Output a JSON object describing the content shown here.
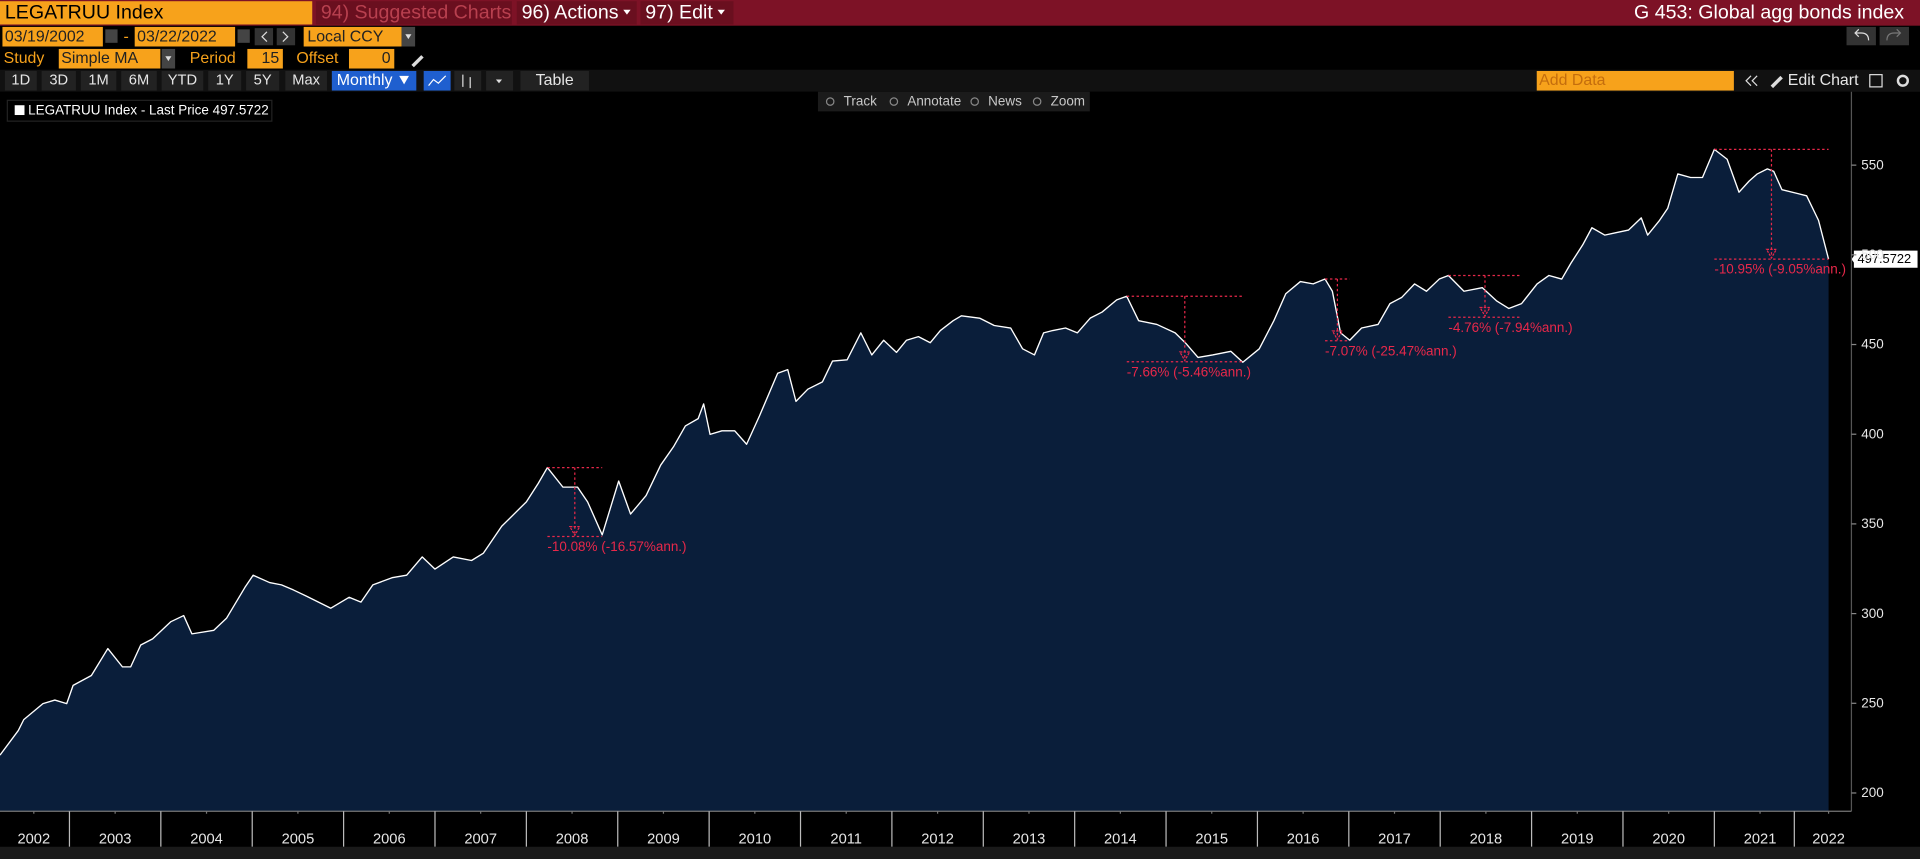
{
  "ui": {
    "security": "LEGATRUU Index",
    "menu": [
      "94) Suggested Charts",
      "96) Actions",
      "97) Edit"
    ],
    "description": "G 453: Global agg bonds index",
    "start_date": "03/19/2002",
    "date_sep": "-",
    "end_date": "03/22/2022",
    "currency": "Local CCY",
    "study_label": "Study",
    "study": "Simple MA",
    "period_label": "Period",
    "period": 15,
    "offset_label": "Offset",
    "offset": 0,
    "ranges": [
      "1D",
      "3D",
      "1M",
      "6M",
      "YTD",
      "1Y",
      "5Y",
      "Max"
    ],
    "frequency": "Monthly",
    "table": "Table",
    "add_data": "Add Data",
    "edit_chart": "Edit Chart",
    "tools": [
      "Track",
      "Annotate",
      "News",
      "Zoom"
    ]
  },
  "chart_data": {
    "type": "line",
    "x": [
      2002.24,
      2002.44,
      2002.5,
      2002.71,
      2002.84,
      2002.97,
      2003.04,
      2003.24,
      2003.42,
      2003.58,
      2003.67,
      2003.78,
      2003.91,
      2004.11,
      2004.25,
      2004.34,
      2004.58,
      2004.72,
      2004.92,
      2005.01,
      2005.19,
      2005.32,
      2005.45,
      2005.59,
      2005.86,
      2006.06,
      2006.19,
      2006.32,
      2006.53,
      2006.69,
      2006.86,
      2007.0,
      2007.2,
      2007.4,
      2007.53,
      2007.73,
      2008.0,
      2008.13,
      2008.23,
      2008.4,
      2008.56,
      2008.67,
      2008.83,
      2009.01,
      2009.14,
      2009.31,
      2009.47,
      2009.61,
      2009.74,
      2009.88,
      2009.94,
      2010.01,
      2010.14,
      2010.28,
      2010.41,
      2010.55,
      2010.75,
      2010.86,
      2010.95,
      2011.08,
      2011.24,
      2011.35,
      2011.51,
      2011.66,
      2011.78,
      2011.91,
      2012.05,
      2012.16,
      2012.29,
      2012.42,
      2012.53,
      2012.67,
      2012.76,
      2012.96,
      2013.12,
      2013.3,
      2013.43,
      2013.56,
      2013.66,
      2013.76,
      2013.9,
      2014.03,
      2014.17,
      2014.3,
      2014.46,
      2014.57,
      2014.7,
      2014.9,
      2015.1,
      2015.21,
      2015.35,
      2015.51,
      2015.71,
      2015.84,
      2016.02,
      2016.18,
      2016.31,
      2016.47,
      2016.61,
      2016.74,
      2016.82,
      2016.91,
      2017.01,
      2017.14,
      2017.32,
      2017.45,
      2017.58,
      2017.72,
      2017.85,
      2017.99,
      2018.09,
      2018.26,
      2018.46,
      2018.62,
      2018.75,
      2018.89,
      2019.06,
      2019.19,
      2019.33,
      2019.43,
      2019.56,
      2019.66,
      2019.8,
      2019.93,
      2020.06,
      2020.2,
      2020.27,
      2020.4,
      2020.49,
      2020.6,
      2020.74,
      2020.87,
      2021.0,
      2021.14,
      2021.27,
      2021.38,
      2021.47,
      2021.58,
      2021.65,
      2021.74,
      2021.91,
      2022.01,
      2022.14,
      2022.25
    ],
    "series": [
      {
        "name": "LEGATRUU Index - Last Price 497.5722",
        "color": "#ffffff",
        "fill": "#0a1e3a",
        "values": [
          221.1,
          234.8,
          240.9,
          249.8,
          251.8,
          249.8,
          260.0,
          265.5,
          280.5,
          270.3,
          270.3,
          282.5,
          285.9,
          295.5,
          298.9,
          288.7,
          290.7,
          297.5,
          314.6,
          321.4,
          317.3,
          316.0,
          313.2,
          309.8,
          303.0,
          309.1,
          306.4,
          316.0,
          320.0,
          321.4,
          331.6,
          324.8,
          331.6,
          329.6,
          333.7,
          348.7,
          362.3,
          372.6,
          381.4,
          370.5,
          370.5,
          362.3,
          343.9,
          373.9,
          355.5,
          365.8,
          382.8,
          393.0,
          404.6,
          408.7,
          416.9,
          399.9,
          401.9,
          401.9,
          394.4,
          410.1,
          434.0,
          436.0,
          418.3,
          425.1,
          429.2,
          440.8,
          441.5,
          456.5,
          444.2,
          452.4,
          445.6,
          452.4,
          454.4,
          451.0,
          457.8,
          463.3,
          466.0,
          464.7,
          460.6,
          459.2,
          447.6,
          444.2,
          456.5,
          457.8,
          459.2,
          456.5,
          464.7,
          468.1,
          474.9,
          476.9,
          463.3,
          461.2,
          456.5,
          451.0,
          442.8,
          444.2,
          446.2,
          440.1,
          447.6,
          463.3,
          478.3,
          485.1,
          483.8,
          486.5,
          479.7,
          456.5,
          452.4,
          459.2,
          461.2,
          472.8,
          476.3,
          483.8,
          479.7,
          486.5,
          488.5,
          479.7,
          481.7,
          474.2,
          470.1,
          472.8,
          483.8,
          488.5,
          486.5,
          495.3,
          505.6,
          515.1,
          511.0,
          512.4,
          513.8,
          520.6,
          511.0,
          519.2,
          526.0,
          545.1,
          543.1,
          543.1,
          558.8,
          553.3,
          534.9,
          541.1,
          545.1,
          547.9,
          546.5,
          536.3,
          534.2,
          532.9,
          519.2,
          497.5722
        ]
      }
    ],
    "xlim": [
      2002.24,
      2022.5
    ],
    "ylim": [
      189.8,
      590.9
    ],
    "xticks": [
      {
        "value": 2002.61,
        "label": "2002"
      },
      {
        "value": 2003.5,
        "label": "2003"
      },
      {
        "value": 2004.5,
        "label": "2004"
      },
      {
        "value": 2005.5,
        "label": "2005"
      },
      {
        "value": 2006.5,
        "label": "2006"
      },
      {
        "value": 2007.5,
        "label": "2007"
      },
      {
        "value": 2008.5,
        "label": "2008"
      },
      {
        "value": 2009.5,
        "label": "2009"
      },
      {
        "value": 2010.5,
        "label": "2010"
      },
      {
        "value": 2011.5,
        "label": "2011"
      },
      {
        "value": 2012.5,
        "label": "2012"
      },
      {
        "value": 2013.5,
        "label": "2013"
      },
      {
        "value": 2014.5,
        "label": "2014"
      },
      {
        "value": 2015.5,
        "label": "2015"
      },
      {
        "value": 2016.5,
        "label": "2016"
      },
      {
        "value": 2017.5,
        "label": "2017"
      },
      {
        "value": 2018.5,
        "label": "2018"
      },
      {
        "value": 2019.5,
        "label": "2019"
      },
      {
        "value": 2020.5,
        "label": "2020"
      },
      {
        "value": 2021.5,
        "label": "2021"
      },
      {
        "value": 2022.25,
        "label": "2022"
      }
    ],
    "yticks": [
      200,
      250,
      300,
      350,
      400,
      450,
      500,
      550
    ],
    "annotation_color": "#e8284a",
    "drawdowns": [
      {
        "label": "-10.08% (-16.57%ann.)",
        "peak_x": 2008.23,
        "peak": 381.4,
        "trough_x": 2008.83,
        "trough": 343.0
      },
      {
        "label": "-7.66% (-5.46%ann.)",
        "peak_x": 2014.57,
        "peak": 476.9,
        "trough_x": 2015.84,
        "trough": 440.4
      },
      {
        "label": "-7.07% (-25.47%ann.)",
        "peak_x": 2016.74,
        "peak": 486.5,
        "trough_x": 2017.01,
        "trough": 452.1
      },
      {
        "label": "-4.76% (-7.94%ann.)",
        "peak_x": 2018.09,
        "peak": 488.5,
        "trough_x": 2018.89,
        "trough": 465.2
      },
      {
        "label": "-10.95% (-9.05%ann.)",
        "peak_x": 2021.0,
        "peak": 558.8,
        "trough_x": 2022.25,
        "trough": 497.6
      }
    ]
  }
}
